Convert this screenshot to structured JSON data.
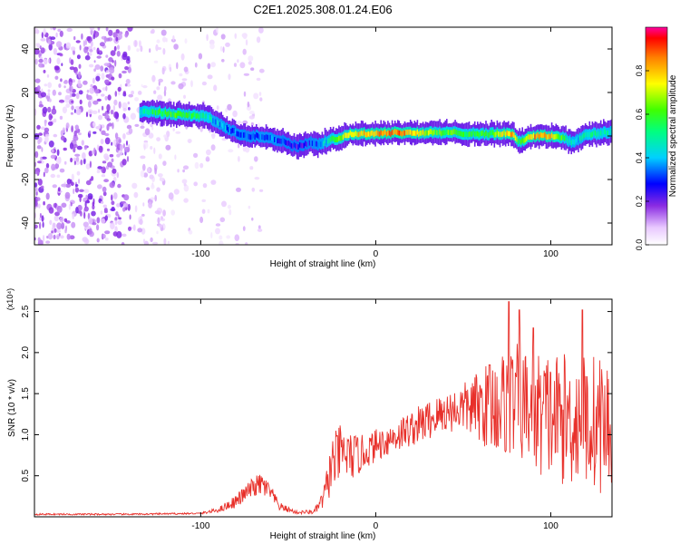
{
  "title": "C2E1.2025.308.01.24.E06",
  "chart_data": [
    {
      "type": "heatmap",
      "title": "C2E1.2025.308.01.24.E06",
      "xlabel": "Height of straight line (km)",
      "ylabel": "Frequency (Hz)",
      "xlim": [
        -195,
        135
      ],
      "ylim": [
        -50,
        50
      ],
      "xticks": [
        -100,
        0,
        100
      ],
      "xtick_labels": [
        "-100",
        "0",
        "100"
      ],
      "yticks": [
        -40,
        -20,
        0,
        20,
        40
      ],
      "ytick_labels": [
        "-40",
        "-20",
        "0",
        "20",
        "40"
      ],
      "colorbar": {
        "label": "Normalized spectral amplitude",
        "range": [
          0,
          1
        ],
        "ticks": [
          0.0,
          0.2,
          0.4,
          0.6,
          0.8
        ],
        "tick_labels": [
          "0.0",
          "0.2",
          "0.4",
          "0.6",
          "0.8"
        ]
      },
      "ridge": {
        "x": [
          -135,
          -125,
          -115,
          -105,
          -98,
          -92,
          -85,
          -75,
          -65,
          -55,
          -45,
          -38,
          -32,
          -28,
          -22,
          -15,
          -5,
          5,
          15,
          25,
          35,
          45,
          55,
          65,
          72,
          78,
          82,
          88,
          95,
          102,
          108,
          112,
          118,
          125,
          135
        ],
        "freq": [
          11,
          11,
          10,
          9.5,
          9,
          7,
          3,
          0,
          0,
          -2,
          -5,
          -3,
          -4,
          -2,
          -1,
          1,
          1,
          1.5,
          1.5,
          1.5,
          1.5,
          1.5,
          1,
          1,
          1,
          1,
          -3,
          0,
          0,
          0,
          -1,
          -3,
          0,
          1,
          2
        ],
        "amplitude": [
          0.45,
          0.55,
          0.6,
          0.55,
          0.5,
          0.4,
          0.35,
          0.3,
          0.35,
          0.3,
          0.25,
          0.3,
          0.35,
          0.45,
          0.6,
          0.75,
          0.8,
          0.85,
          0.85,
          0.75,
          0.6,
          0.6,
          0.55,
          0.6,
          0.7,
          0.85,
          0.55,
          0.8,
          0.85,
          0.75,
          0.5,
          0.4,
          0.45,
          0.5,
          0.45
        ]
      },
      "noise_region_x": [
        -195,
        -100
      ]
    },
    {
      "type": "line",
      "title": "",
      "xlabel": "Height of straight line (km)",
      "ylabel": "SNR (10 * v/v)",
      "scale_label": "(x10⁴)",
      "xlim": [
        -195,
        135
      ],
      "ylim": [
        0,
        2.65
      ],
      "xticks": [
        -100,
        0,
        100
      ],
      "xtick_labels": [
        "-100",
        "0",
        "100"
      ],
      "yticks": [
        0.5,
        1.0,
        1.5,
        2.0,
        2.5
      ],
      "ytick_labels": [
        "0.5",
        "1.0",
        "1.5",
        "2.0",
        "2.5"
      ],
      "series": [
        {
          "name": "SNR",
          "color": "#e8302a",
          "envelope_x": [
            -195,
            -140,
            -100,
            -90,
            -80,
            -70,
            -65,
            -60,
            -55,
            -45,
            -35,
            -30,
            -25,
            -20,
            -15,
            -10,
            -5,
            0,
            10,
            20,
            30,
            40,
            50,
            60,
            70,
            80,
            90,
            100,
            110,
            120,
            128,
            135
          ],
          "envelope_y": [
            0.03,
            0.03,
            0.04,
            0.08,
            0.18,
            0.35,
            0.38,
            0.28,
            0.12,
            0.05,
            0.06,
            0.2,
            0.6,
            0.75,
            0.7,
            0.72,
            0.78,
            0.85,
            0.95,
            1.05,
            1.15,
            1.25,
            1.3,
            1.3,
            1.3,
            1.35,
            1.2,
            1.15,
            1.1,
            1.1,
            1.05,
            1.0
          ],
          "spread_y": [
            0.01,
            0.01,
            0.01,
            0.03,
            0.08,
            0.12,
            0.15,
            0.1,
            0.05,
            0.02,
            0.03,
            0.12,
            0.35,
            0.35,
            0.3,
            0.25,
            0.2,
            0.2,
            0.2,
            0.22,
            0.25,
            0.25,
            0.3,
            0.45,
            0.65,
            0.7,
            0.75,
            0.8,
            0.8,
            0.85,
            0.85,
            0.8
          ],
          "peaks": [
            {
              "x": 76,
              "y": 2.62
            },
            {
              "x": 82,
              "y": 2.52
            },
            {
              "x": 118,
              "y": 2.52
            },
            {
              "x": 90,
              "y": 2.3
            },
            {
              "x": 65,
              "y": 1.85
            }
          ]
        }
      ]
    }
  ]
}
